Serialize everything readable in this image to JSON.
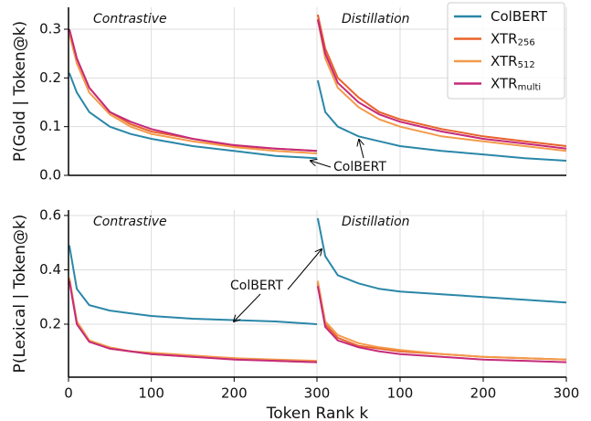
{
  "chart_data": [
    {
      "type": "line",
      "ylabel": "P(Gold | Token@k)",
      "ylim": [
        0,
        0.345
      ],
      "yticks": [
        {
          "value": 0,
          "label": "0.0"
        },
        {
          "value": 0.1,
          "label": "0.1"
        },
        {
          "value": 0.2,
          "label": "0.2"
        },
        {
          "value": 0.3,
          "label": "0.3"
        }
      ],
      "grid": true,
      "legend": "upper right",
      "annotation": "ColBERT",
      "panels": [
        {
          "title": "Contrastive",
          "xlim": [
            0,
            300
          ],
          "xticks": [
            0,
            100,
            200,
            300
          ],
          "x": [
            1,
            10,
            25,
            50,
            75,
            100,
            150,
            200,
            250,
            300
          ],
          "series": [
            {
              "name": "ColBERT",
              "color": "#2a87a8",
              "values": [
                0.21,
                0.17,
                0.13,
                0.1,
                0.085,
                0.075,
                0.06,
                0.05,
                0.04,
                0.035
              ]
            },
            {
              "name": "XTR",
              "name_sub": "256",
              "color": "#e8622a",
              "values": [
                0.3,
                0.24,
                0.18,
                0.13,
                0.105,
                0.09,
                0.075,
                0.06,
                0.055,
                0.05
              ]
            },
            {
              "name": "XTR",
              "name_sub": "512",
              "color": "#f39a4a",
              "values": [
                0.29,
                0.23,
                0.17,
                0.125,
                0.1,
                0.085,
                0.07,
                0.058,
                0.05,
                0.045
              ]
            },
            {
              "name": "XTR",
              "name_sub": "multi",
              "color": "#c52a7a",
              "values": [
                0.3,
                0.24,
                0.18,
                0.13,
                0.11,
                0.095,
                0.075,
                0.062,
                0.055,
                0.05
              ]
            }
          ]
        },
        {
          "title": "Distillation",
          "xlim": [
            0,
            300
          ],
          "xticks": [
            100,
            200,
            300
          ],
          "x": [
            1,
            10,
            25,
            50,
            75,
            100,
            150,
            200,
            250,
            300
          ],
          "series": [
            {
              "color": "#2a87a8",
              "values": [
                0.195,
                0.13,
                0.1,
                0.08,
                0.07,
                0.06,
                0.05,
                0.043,
                0.035,
                0.03
              ]
            },
            {
              "color": "#e8622a",
              "values": [
                0.33,
                0.26,
                0.2,
                0.16,
                0.13,
                0.115,
                0.095,
                0.08,
                0.07,
                0.06
              ]
            },
            {
              "color": "#f39a4a",
              "values": [
                0.32,
                0.24,
                0.18,
                0.14,
                0.115,
                0.1,
                0.08,
                0.07,
                0.06,
                0.05
              ]
            },
            {
              "color": "#c52a7a",
              "values": [
                0.32,
                0.25,
                0.19,
                0.15,
                0.125,
                0.11,
                0.09,
                0.075,
                0.065,
                0.055
              ]
            }
          ]
        }
      ]
    },
    {
      "type": "line",
      "ylabel": "P(Lexical | Token@k)",
      "xlabel": "Token Rank k",
      "xtick_labels": true,
      "ylim": [
        0.005,
        0.62
      ],
      "yticks": [
        {
          "value": 0.2,
          "label": "0.2"
        },
        {
          "value": 0.4,
          "label": "0.4"
        },
        {
          "value": 0.6,
          "label": "0.6"
        }
      ],
      "grid": true,
      "annotation": "ColBERT",
      "panels": [
        {
          "title": "Contrastive",
          "xlim": [
            0,
            300
          ],
          "xticks": [
            0,
            100,
            200,
            300
          ],
          "x": [
            1,
            10,
            25,
            50,
            75,
            100,
            150,
            200,
            250,
            300
          ],
          "series": [
            {
              "color": "#2a87a8",
              "values": [
                0.49,
                0.33,
                0.27,
                0.25,
                0.24,
                0.23,
                0.22,
                0.215,
                0.21,
                0.2
              ]
            },
            {
              "color": "#e8622a",
              "values": [
                0.37,
                0.21,
                0.14,
                0.11,
                0.1,
                0.09,
                0.08,
                0.075,
                0.065,
                0.06
              ]
            },
            {
              "color": "#f39a4a",
              "values": [
                0.37,
                0.21,
                0.14,
                0.115,
                0.1,
                0.095,
                0.085,
                0.075,
                0.07,
                0.065
              ]
            },
            {
              "color": "#c52a7a",
              "values": [
                0.36,
                0.2,
                0.135,
                0.11,
                0.1,
                0.09,
                0.08,
                0.07,
                0.065,
                0.06
              ]
            }
          ]
        },
        {
          "title": "Distillation",
          "xlim": [
            0,
            300
          ],
          "xticks": [
            100,
            200,
            300
          ],
          "x": [
            1,
            10,
            25,
            50,
            75,
            100,
            150,
            200,
            250,
            300
          ],
          "series": [
            {
              "color": "#2a87a8",
              "values": [
                0.59,
                0.45,
                0.38,
                0.35,
                0.33,
                0.32,
                0.31,
                0.3,
                0.29,
                0.28
              ]
            },
            {
              "color": "#e8622a",
              "values": [
                0.35,
                0.2,
                0.15,
                0.12,
                0.11,
                0.1,
                0.09,
                0.08,
                0.075,
                0.07
              ]
            },
            {
              "color": "#f39a4a",
              "values": [
                0.36,
                0.21,
                0.16,
                0.13,
                0.115,
                0.105,
                0.09,
                0.08,
                0.075,
                0.07
              ]
            },
            {
              "color": "#c52a7a",
              "values": [
                0.34,
                0.19,
                0.14,
                0.115,
                0.1,
                0.09,
                0.08,
                0.07,
                0.065,
                0.06
              ]
            }
          ]
        }
      ]
    }
  ]
}
